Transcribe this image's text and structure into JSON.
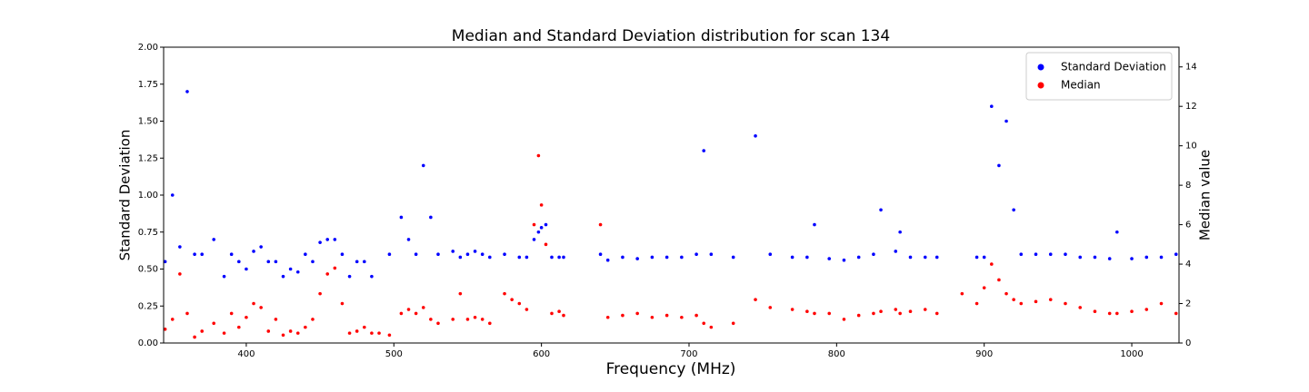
{
  "chart_data": {
    "type": "scatter",
    "title": "Median and Standard Deviation distribution for scan 134",
    "x_label": "Frequency (MHz)",
    "y_label": "Standard Deviation",
    "y2_label": "Median value",
    "x": [
      345,
      350,
      355,
      360,
      365,
      370,
      378,
      385,
      390,
      395,
      400,
      405,
      410,
      415,
      420,
      425,
      430,
      435,
      440,
      445,
      450,
      455,
      460,
      465,
      470,
      475,
      480,
      485,
      490,
      497,
      505,
      510,
      515,
      520,
      525,
      530,
      540,
      545,
      550,
      555,
      560,
      565,
      575,
      580,
      585,
      590,
      595,
      598,
      600,
      603,
      607,
      612,
      615,
      640,
      645,
      655,
      665,
      675,
      685,
      695,
      705,
      710,
      715,
      730,
      745,
      755,
      770,
      780,
      785,
      795,
      805,
      815,
      825,
      830,
      840,
      843,
      850,
      860,
      868,
      885,
      895,
      900,
      905,
      910,
      915,
      920,
      925,
      935,
      945,
      955,
      965,
      975,
      985,
      990,
      1000,
      1010,
      1020,
      1030
    ],
    "series": [
      {
        "name": "Standard Deviation",
        "color": "#0000ff",
        "values": [
          0.55,
          1.0,
          0.65,
          1.7,
          0.6,
          0.6,
          0.7,
          0.45,
          0.6,
          0.55,
          0.5,
          0.62,
          0.65,
          0.55,
          0.55,
          0.45,
          0.5,
          0.48,
          0.6,
          0.55,
          0.68,
          0.7,
          0.7,
          0.6,
          0.45,
          0.55,
          0.55,
          0.45,
          null,
          0.6,
          0.85,
          0.7,
          0.6,
          1.2,
          0.85,
          0.6,
          0.62,
          0.58,
          0.6,
          0.62,
          0.6,
          0.58,
          0.6,
          null,
          0.58,
          0.58,
          0.7,
          0.75,
          0.78,
          0.8,
          0.58,
          0.58,
          0.58,
          0.6,
          0.56,
          0.58,
          0.57,
          0.58,
          0.58,
          0.58,
          0.6,
          1.3,
          0.6,
          0.58,
          1.4,
          0.6,
          0.58,
          0.58,
          0.8,
          0.57,
          0.56,
          0.58,
          0.6,
          0.9,
          0.62,
          0.75,
          0.58,
          0.58,
          0.58,
          null,
          0.58,
          0.58,
          1.6,
          1.2,
          1.5,
          0.9,
          0.6,
          0.6,
          0.6,
          0.6,
          0.58,
          0.58,
          0.57,
          0.75,
          0.57,
          0.58,
          0.58,
          0.6
        ]
      },
      {
        "name": "Median",
        "color": "#ff0000",
        "axis": "y2",
        "values": [
          0.7,
          1.2,
          3.5,
          1.5,
          0.3,
          0.6,
          1.0,
          0.5,
          1.5,
          0.8,
          1.3,
          2.0,
          1.8,
          0.6,
          1.2,
          0.4,
          0.6,
          0.5,
          0.8,
          1.2,
          2.5,
          3.5,
          3.8,
          2.0,
          0.5,
          0.6,
          0.8,
          0.5,
          0.5,
          0.4,
          1.5,
          1.7,
          1.5,
          1.8,
          1.2,
          1.0,
          1.2,
          2.5,
          1.2,
          1.3,
          1.2,
          1.0,
          2.5,
          2.2,
          2.0,
          1.7,
          6.0,
          9.5,
          7.0,
          5.0,
          1.5,
          1.6,
          1.4,
          6.0,
          1.3,
          1.4,
          1.5,
          1.3,
          1.4,
          1.3,
          1.4,
          1.0,
          0.8,
          1.0,
          2.2,
          1.8,
          1.7,
          1.6,
          1.5,
          1.5,
          1.2,
          1.4,
          1.5,
          1.6,
          1.7,
          1.5,
          1.6,
          1.7,
          1.5,
          2.5,
          2.0,
          2.8,
          4.0,
          3.2,
          2.5,
          2.2,
          2.0,
          2.1,
          2.2,
          2.0,
          1.8,
          1.6,
          1.5,
          1.5,
          1.6,
          1.7,
          2.0,
          1.5
        ]
      }
    ],
    "xlim": [
      344,
      1032
    ],
    "xticks": [
      400,
      500,
      600,
      700,
      800,
      900,
      1000
    ],
    "ylim": [
      0,
      2
    ],
    "yticks": [
      {
        "value": 0,
        "label": "0.00"
      },
      {
        "value": 0.25,
        "label": "0.25"
      },
      {
        "value": 0.5,
        "label": "0.50"
      },
      {
        "value": 0.75,
        "label": "0.75"
      },
      {
        "value": 1,
        "label": "1.00"
      },
      {
        "value": 1.25,
        "label": "1.25"
      },
      {
        "value": 1.5,
        "label": "1.50"
      },
      {
        "value": 1.75,
        "label": "1.75"
      },
      {
        "value": 2,
        "label": "2.00"
      }
    ],
    "y2lim": [
      0,
      15
    ],
    "y2ticks": [
      0,
      2,
      4,
      6,
      8,
      10,
      12,
      14
    ],
    "legend": "upper right"
  }
}
